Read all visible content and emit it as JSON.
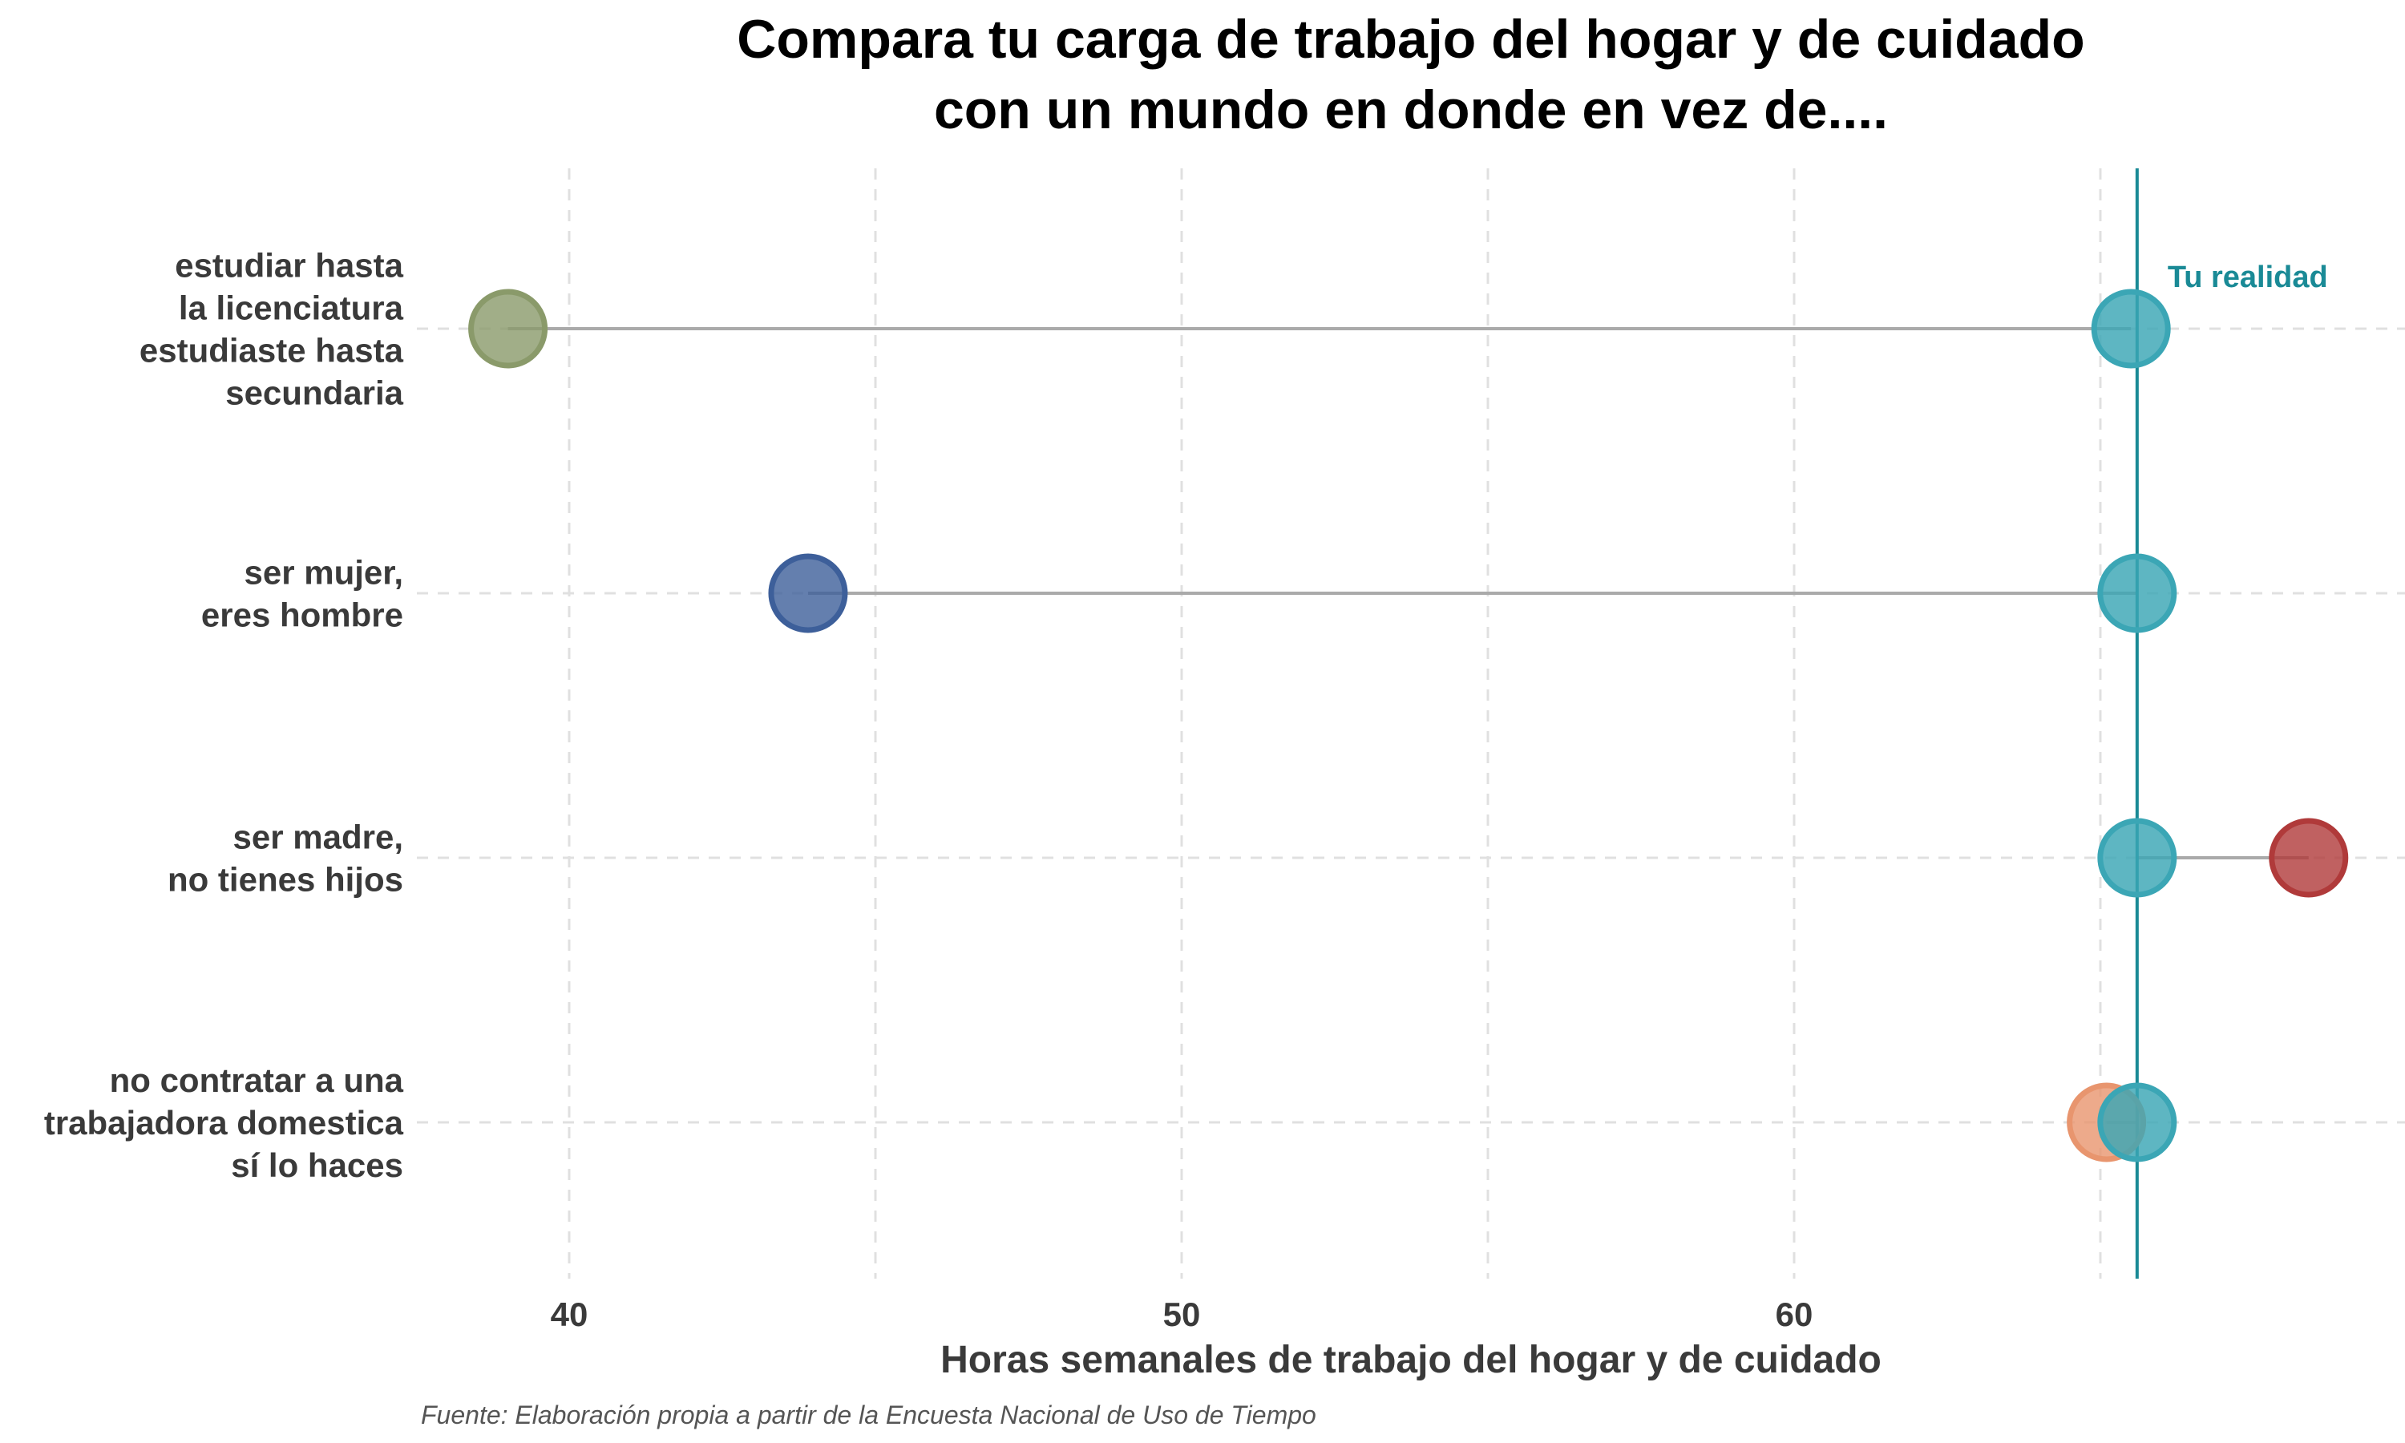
{
  "chart_data": {
    "type": "dumbbell",
    "title_lines": [
      "Compara tu carga de trabajo del hogar y de cuidado",
      "con un mundo en donde en vez de...."
    ],
    "xlabel": "Horas semanales de trabajo del hogar y de cuidado",
    "caption": "Fuente: Elaboración propia a partir de la Encuesta Nacional de Uso de Tiempo",
    "xlim": [
      37.5,
      70
    ],
    "x_ticks": [
      40,
      50,
      60
    ],
    "x_minor_ticks": [
      45,
      55,
      65
    ],
    "grid": "dashed",
    "reference": {
      "value": 65.6,
      "label": "Tu realidad",
      "color": "#1a8a96"
    },
    "rows": [
      {
        "label_lines": [
          "estudiar hasta",
          "la licenciatura",
          "estudiaste hasta",
          "secundaria"
        ],
        "reality": 65.5,
        "alternative": 39.0,
        "alt_color": "#8a9a6a"
      },
      {
        "label_lines": [
          "ser mujer,",
          "eres hombre"
        ],
        "reality": 65.6,
        "alternative": 43.9,
        "alt_color": "#3d5f9a"
      },
      {
        "label_lines": [
          "ser madre,",
          "no tienes hijos"
        ],
        "reality": 65.6,
        "alternative": 68.4,
        "alt_color": "#b03a3a"
      },
      {
        "label_lines": [
          "no contratar a una",
          "trabajadora domestica",
          "sí lo haces"
        ],
        "reality": 65.6,
        "alternative": 65.1,
        "alt_color": "#e8956e"
      }
    ],
    "reality_color": "#3ba6b5",
    "segment_color": "#aaaaaa"
  }
}
